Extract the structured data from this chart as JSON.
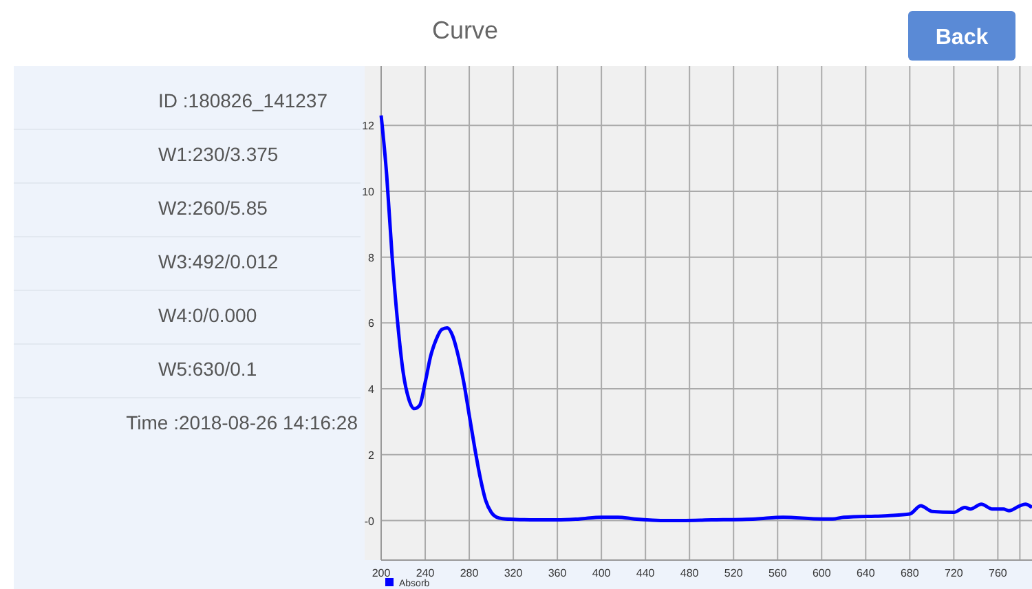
{
  "chart_data": {
    "type": "line",
    "title": "Curve",
    "annotations": [
      "ID :180826_141237",
      "W1:230/3.375",
      "W2:260/5.85",
      "W3:492/0.012",
      "W4:0/0.000",
      "W5:630/0.1",
      "Time :2018-08-26 14:16:28",
      "Back"
    ],
    "x": [
      200,
      205,
      210,
      215,
      220,
      225,
      230,
      235,
      240,
      245,
      250,
      255,
      260,
      265,
      270,
      275,
      280,
      285,
      290,
      295,
      300,
      305,
      310,
      320,
      340,
      360,
      380,
      400,
      415,
      430,
      460,
      500,
      540,
      565,
      600,
      610,
      620,
      660,
      680,
      690,
      700,
      720,
      730,
      735,
      745,
      755,
      765,
      770,
      780,
      785,
      791
    ],
    "series": [
      {
        "name": "Absorb",
        "color": "#0000ff",
        "values": [
          12.3,
          10.5,
          8,
          6,
          4.5,
          3.7,
          3.4,
          3.5,
          4.2,
          5,
          5.5,
          5.8,
          5.85,
          5.6,
          5,
          4.2,
          3.2,
          2.2,
          1.3,
          0.6,
          0.25,
          0.1,
          0.06,
          0.04,
          0.02,
          0.02,
          0.05,
          0.1,
          0.1,
          0.05,
          0,
          0.02,
          0.05,
          0.1,
          0.05,
          0.05,
          0.1,
          0.15,
          0.2,
          0.45,
          0.28,
          0.25,
          0.4,
          0.35,
          0.5,
          0.35,
          0.35,
          0.3,
          0.45,
          0.5,
          0.4
        ]
      }
    ],
    "xlim": [
      200,
      791
    ],
    "ylim": [
      -1.2,
      13.8
    ],
    "xticks": [
      200,
      240,
      280,
      320,
      360,
      400,
      440,
      480,
      520,
      560,
      600,
      640,
      680,
      720,
      760,
      {
        "value": 780,
        "label": null
      }
    ],
    "yticks": [
      {
        "value": 0,
        "label": "-0"
      },
      2,
      4,
      6,
      8,
      10,
      12
    ],
    "grid": true,
    "legend": "bottom",
    "line_style": "solid",
    "marker": "none"
  }
}
